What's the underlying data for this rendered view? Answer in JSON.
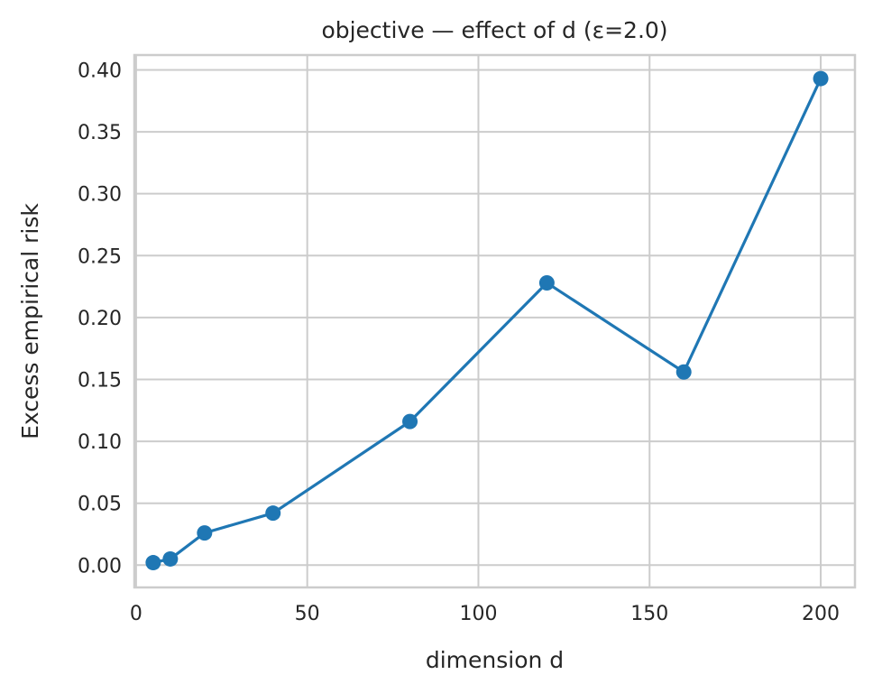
{
  "chart_data": {
    "type": "line",
    "title": "objective — effect of d  (ε=2.0)",
    "xlabel": "dimension d",
    "ylabel": "Excess empirical risk",
    "xlim": [
      -0.5,
      210
    ],
    "ylim": [
      -0.018,
      0.412
    ],
    "xticks": [
      0,
      50,
      100,
      150,
      200
    ],
    "xtick_labels": [
      "0",
      "50",
      "100",
      "150",
      "200"
    ],
    "yticks": [
      0.0,
      0.05,
      0.1,
      0.15,
      0.2,
      0.25,
      0.3,
      0.35,
      0.4
    ],
    "ytick_labels": [
      "0.00",
      "0.05",
      "0.10",
      "0.15",
      "0.20",
      "0.25",
      "0.30",
      "0.35",
      "0.40"
    ],
    "grid": true,
    "series": [
      {
        "color": "#1f77b4",
        "marker": "circle",
        "x": [
          5,
          10,
          20,
          40,
          80,
          120,
          160,
          200
        ],
        "y": [
          0.002,
          0.005,
          0.026,
          0.042,
          0.116,
          0.228,
          0.156,
          0.393
        ]
      }
    ]
  },
  "colors": {
    "line": "#1f77b4",
    "grid": "#cccccc",
    "frame": "#cccccc",
    "text": "#262626"
  }
}
